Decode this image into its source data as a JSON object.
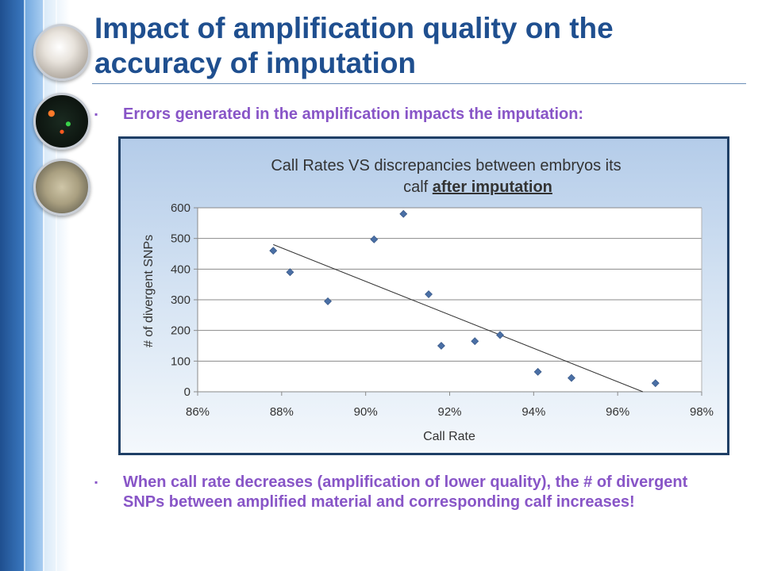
{
  "slide": {
    "title": "Impact of amplification quality on the accuracy of imputation",
    "bullets": [
      {
        "marker": "▪",
        "text": "Errors generated in the amplification impacts the imputation:"
      },
      {
        "marker": "▪",
        "text": "When call rate decreases (amplification of lower quality), the # of divergent SNPs between amplified material and corresponding calf increases!"
      }
    ],
    "colors": {
      "title": "#1f4f8f",
      "bullet": "#8855c7",
      "marker": "#4a6fa5",
      "trend": "#333333"
    }
  },
  "chart_data": {
    "type": "scatter",
    "title": "Call Rates VS discrepancies between embryos its",
    "title_line2_plain": "calf ",
    "title_line2_underlined": "after imputation",
    "xlabel": "Call Rate",
    "ylabel": "# of divergent SNPs",
    "xlim": [
      0.86,
      0.98
    ],
    "ylim": [
      0,
      600
    ],
    "xticks": [
      0.86,
      0.88,
      0.9,
      0.92,
      0.94,
      0.96,
      0.98
    ],
    "xtick_labels": [
      "86%",
      "88%",
      "90%",
      "92%",
      "94%",
      "96%",
      "98%"
    ],
    "yticks": [
      0,
      100,
      200,
      300,
      400,
      500,
      600
    ],
    "ytick_labels": [
      "0",
      "100",
      "200",
      "300",
      "400",
      "500",
      "600"
    ],
    "grid": "horizontal",
    "legend": "none",
    "points": [
      {
        "x": 0.878,
        "y": 460
      },
      {
        "x": 0.882,
        "y": 390
      },
      {
        "x": 0.891,
        "y": 295
      },
      {
        "x": 0.902,
        "y": 497
      },
      {
        "x": 0.909,
        "y": 580
      },
      {
        "x": 0.915,
        "y": 318
      },
      {
        "x": 0.918,
        "y": 150
      },
      {
        "x": 0.926,
        "y": 165
      },
      {
        "x": 0.932,
        "y": 185
      },
      {
        "x": 0.941,
        "y": 65
      },
      {
        "x": 0.949,
        "y": 45
      },
      {
        "x": 0.969,
        "y": 28
      }
    ],
    "trendline": {
      "x": [
        0.878,
        0.966
      ],
      "y": [
        480,
        0
      ]
    }
  }
}
